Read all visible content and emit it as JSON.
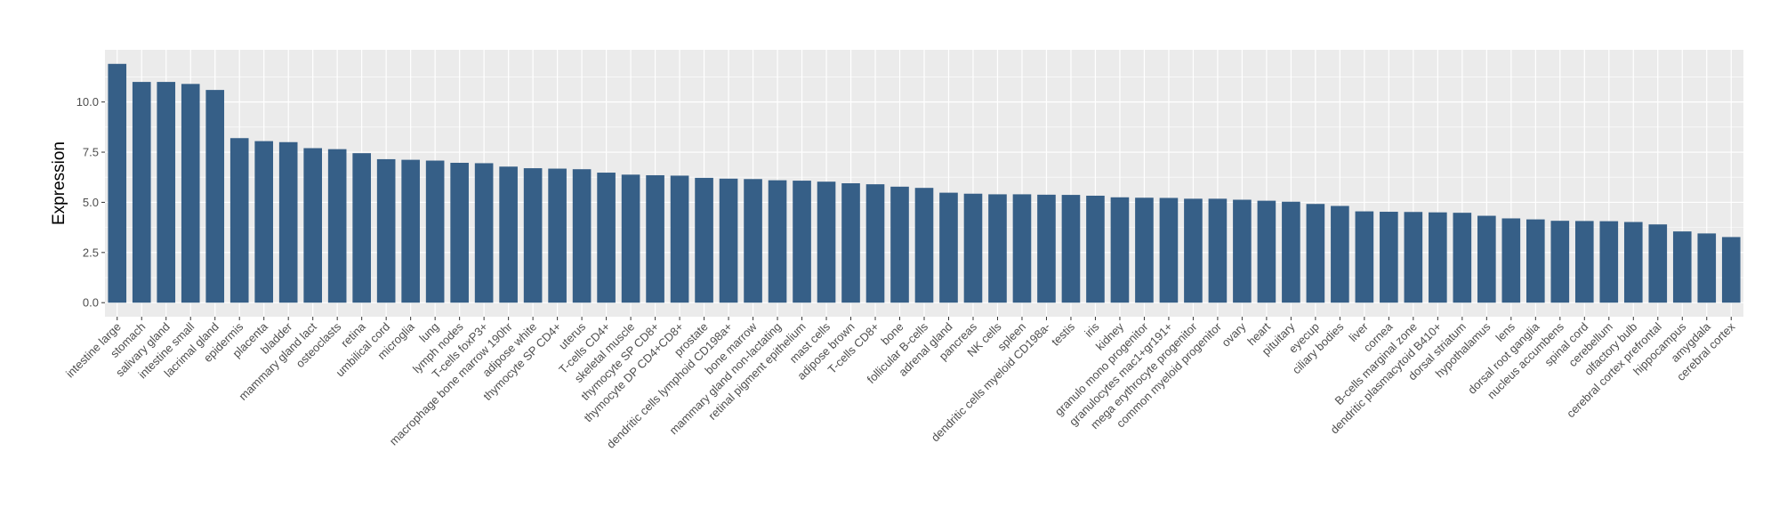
{
  "chart_data": {
    "type": "bar",
    "ylabel": "Expression",
    "xlabel": "",
    "ylim": [
      -0.7,
      12.6
    ],
    "yticks": [
      0.0,
      2.5,
      5.0,
      7.5,
      10.0
    ],
    "ytick_labels": [
      "0.0",
      "2.5",
      "5.0",
      "7.5",
      "10.0"
    ],
    "grid": true,
    "bar_color": "#365f87",
    "panel_color": "#ebebeb",
    "grid_color": "#ffffff",
    "categories": [
      "intestine large",
      "stomach",
      "salivary gland",
      "intestine small",
      "lacrimal gland",
      "epidermis",
      "placenta",
      "bladder",
      "mammary gland lact",
      "osteoclasts",
      "retina",
      "umbilical cord",
      "microglia",
      "lung",
      "lymph nodes",
      "T-cells foxP3+",
      "macrophage bone marrow 190hr",
      "adipose white",
      "thymocyte SP CD4+",
      "uterus",
      "T-cells CD4+",
      "skeletal muscle",
      "thymocyte SP CD8+",
      "thymocyte DP CD4+CD8+",
      "prostate",
      "dendritic cells lymphoid CD198a+",
      "bone marrow",
      "mammary gland non-lactating",
      "retinal pigment epithelium",
      "mast cells",
      "adipose brown",
      "T-cells CD8+",
      "bone",
      "follicular B-cells",
      "adrenal gland",
      "pancreas",
      "NK cells",
      "spleen",
      "dendritic cells myeloid CD198a-",
      "testis",
      "iris",
      "kidney",
      "granulo mono progenitor",
      "granulocytes mac1+gr191+",
      "mega erythrocyte progenitor",
      "common myeloid progenitor",
      "ovary",
      "heart",
      "pituitary",
      "eyecup",
      "ciliary bodies",
      "liver",
      "cornea",
      "B-cells marginal zone",
      "dendritic plasmacytoid B410+",
      "dorsal striatum",
      "hypothalamus",
      "lens",
      "dorsal root ganglia",
      "nucleus accumbens",
      "spinal cord",
      "cerebellum",
      "olfactory bulb",
      "cerebral cortex prefrontal",
      "hippocampus",
      "amygdala",
      "cerebral cortex"
    ],
    "values": [
      11.9,
      11.0,
      11.0,
      10.9,
      10.6,
      8.2,
      8.05,
      8.0,
      7.7,
      7.65,
      7.45,
      7.15,
      7.12,
      7.08,
      6.97,
      6.95,
      6.78,
      6.7,
      6.68,
      6.65,
      6.48,
      6.38,
      6.35,
      6.33,
      6.22,
      6.18,
      6.16,
      6.1,
      6.08,
      6.03,
      5.95,
      5.9,
      5.78,
      5.72,
      5.48,
      5.43,
      5.4,
      5.4,
      5.38,
      5.37,
      5.33,
      5.25,
      5.23,
      5.22,
      5.18,
      5.18,
      5.13,
      5.08,
      5.03,
      4.92,
      4.82,
      4.55,
      4.53,
      4.52,
      4.5,
      4.48,
      4.33,
      4.2,
      4.15,
      4.08,
      4.07,
      4.06,
      4.02,
      3.9,
      3.55,
      3.45,
      3.27
    ]
  }
}
